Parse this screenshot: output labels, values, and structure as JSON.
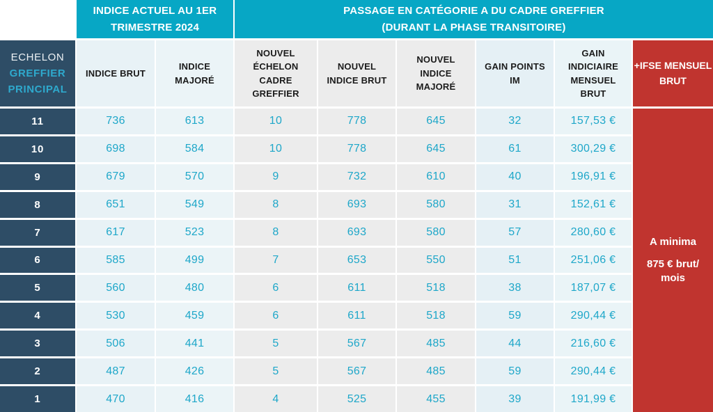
{
  "palette": {
    "teal": "#07a7c5",
    "navy": "#2e4d66",
    "red": "#c0342f",
    "cyan_text": "#1ea7c9",
    "cell_blue": "#e8f2f6",
    "cell_gray": "#ececec"
  },
  "table": {
    "top_headers": {
      "current_index": {
        "line1": "INDICE ACTUEL AU 1ER",
        "line2": "TRIMESTRE 2024"
      },
      "passage": {
        "line1": "PASSAGE EN CATÉGORIE A DU CADRE GREFFIER",
        "line2": "(DURANT LA PHASE TRANSITOIRE)"
      }
    },
    "row_header": {
      "line1": "ECHELON",
      "line2": "GREFFIER",
      "line3": "PRINCIPAL"
    },
    "columns": [
      "INDICE BRUT",
      "INDICE MAJORÉ",
      "NOUVEL ÉCHELON CADRE GREFFIER",
      "NOUVEL INDICE BRUT",
      "NOUVEL INDICE MAJORÉ",
      "GAIN POINTS IM",
      "GAIN INDICIAIRE MENSUEL BRUT",
      "+IFSE MENSUEL BRUT"
    ],
    "rows": [
      {
        "echelon": "11",
        "cells": [
          "736",
          "613",
          "10",
          "778",
          "645",
          "32",
          "157,53 €"
        ]
      },
      {
        "echelon": "10",
        "cells": [
          "698",
          "584",
          "10",
          "778",
          "645",
          "61",
          "300,29 €"
        ]
      },
      {
        "echelon": "9",
        "cells": [
          "679",
          "570",
          "9",
          "732",
          "610",
          "40",
          "196,91 €"
        ]
      },
      {
        "echelon": "8",
        "cells": [
          "651",
          "549",
          "8",
          "693",
          "580",
          "31",
          "152,61 €"
        ]
      },
      {
        "echelon": "7",
        "cells": [
          "617",
          "523",
          "8",
          "693",
          "580",
          "57",
          "280,60 €"
        ]
      },
      {
        "echelon": "6",
        "cells": [
          "585",
          "499",
          "7",
          "653",
          "550",
          "51",
          "251,06 €"
        ]
      },
      {
        "echelon": "5",
        "cells": [
          "560",
          "480",
          "6",
          "611",
          "518",
          "38",
          "187,07 €"
        ]
      },
      {
        "echelon": "4",
        "cells": [
          "530",
          "459",
          "6",
          "611",
          "518",
          "59",
          "290,44 €"
        ]
      },
      {
        "echelon": "3",
        "cells": [
          "506",
          "441",
          "5",
          "567",
          "485",
          "44",
          "216,60 €"
        ]
      },
      {
        "echelon": "2",
        "cells": [
          "487",
          "426",
          "5",
          "567",
          "485",
          "59",
          "290,44 €"
        ]
      },
      {
        "echelon": "1",
        "cells": [
          "470",
          "416",
          "4",
          "525",
          "455",
          "39",
          "191,99 €"
        ]
      }
    ],
    "ifse_note": {
      "line1": "A minima",
      "line2": "875 € brut/",
      "line3": "mois"
    }
  },
  "chart_data": {
    "type": "table",
    "title": "Passage en catégorie A du cadre greffier (durant la phase transitoire) — Greffier principal",
    "columns": [
      "ECHELON GREFFIER PRINCIPAL",
      "INDICE BRUT",
      "INDICE MAJORÉ",
      "NOUVEL ÉCHELON CADRE GREFFIER",
      "NOUVEL INDICE BRUT",
      "NOUVEL INDICE MAJORÉ",
      "GAIN POINTS IM",
      "GAIN INDICIAIRE MENSUEL BRUT",
      "+IFSE MENSUEL BRUT"
    ],
    "rows": [
      [
        11,
        736,
        613,
        10,
        778,
        645,
        32,
        "157,53 €",
        "A minima 875 € brut/mois"
      ],
      [
        10,
        698,
        584,
        10,
        778,
        645,
        61,
        "300,29 €",
        "A minima 875 € brut/mois"
      ],
      [
        9,
        679,
        570,
        9,
        732,
        610,
        40,
        "196,91 €",
        "A minima 875 € brut/mois"
      ],
      [
        8,
        651,
        549,
        8,
        693,
        580,
        31,
        "152,61 €",
        "A minima 875 € brut/mois"
      ],
      [
        7,
        617,
        523,
        8,
        693,
        580,
        57,
        "280,60 €",
        "A minima 875 € brut/mois"
      ],
      [
        6,
        585,
        499,
        7,
        653,
        550,
        51,
        "251,06 €",
        "A minima 875 € brut/mois"
      ],
      [
        5,
        560,
        480,
        6,
        611,
        518,
        38,
        "187,07 €",
        "A minima 875 € brut/mois"
      ],
      [
        4,
        530,
        459,
        6,
        611,
        518,
        59,
        "290,44 €",
        "A minima 875 € brut/mois"
      ],
      [
        3,
        506,
        441,
        5,
        567,
        485,
        44,
        "216,60 €",
        "A minima 875 € brut/mois"
      ],
      [
        2,
        487,
        426,
        5,
        567,
        485,
        59,
        "290,44 €",
        "A minima 875 € brut/mois"
      ],
      [
        1,
        470,
        416,
        4,
        525,
        455,
        39,
        "191,99 €",
        "A minima 875 € brut/mois"
      ]
    ]
  }
}
